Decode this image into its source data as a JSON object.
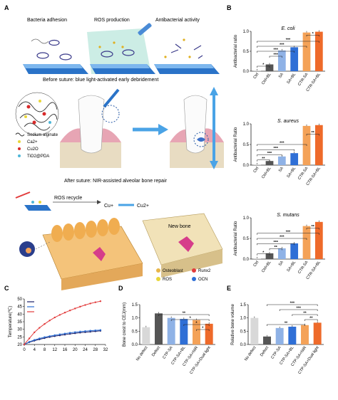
{
  "colors": {
    "ctrl": "#d8d8d8",
    "ctrl_bl": "#555555",
    "sa": "#8fb2e6",
    "sa_bl": "#2f6fd6",
    "ctr_sa": "#f4a258",
    "ctr_sa_bl": "#ee6a2a",
    "line_ctrl": "#1b1e66",
    "line_blue": "#2c6fd5",
    "line_red": "#e23b3b",
    "accent_blue": "#3e9be0",
    "glass_blue": "#2a73c8"
  },
  "panel_a": {
    "label": "A",
    "steps": [
      "Bacteria adhesion",
      "ROS production",
      "Antibacterial activity"
    ],
    "before_caption": "Before suture: blue light-activated early debridement",
    "legend": [
      "Sodium alginate",
      "Ca2+",
      "Cu2O",
      "TiO2@PDA"
    ],
    "after_caption": "After suture: NIR-assisted alveolar bone repair",
    "ros_recycle": "ROS recycle",
    "cu_plus": "Cu+",
    "cu_2plus": "Cu2+",
    "new_bone": "New bone",
    "legend2": [
      "Osteoblast",
      "Runx2",
      "ROS",
      "OCN"
    ]
  },
  "panel_b_label": "B",
  "panel_c_label": "C",
  "panel_d_label": "D",
  "panel_e_label": "E",
  "chart_data": [
    {
      "id": "b1",
      "type": "bar",
      "title": "E. coli",
      "ylabel": "Antibacterial ratio",
      "categories": [
        "Ctrl",
        "Ctrl+BL",
        "SA",
        "SA+BL",
        "CTR-SA",
        "CTR-SA+BL"
      ],
      "values": [
        0.02,
        0.17,
        0.52,
        0.6,
        0.97,
        0.99
      ],
      "ylim": [
        0,
        1.0
      ],
      "yticks": [
        "0.0",
        "0.5",
        "1.0"
      ],
      "sig": [
        "*",
        "***",
        "***",
        "***",
        "***",
        "*"
      ]
    },
    {
      "id": "b2",
      "type": "bar",
      "title": "S. aureus",
      "ylabel": "Antibacterial Ratio",
      "categories": [
        "Ctrl",
        "Ctrl+BL",
        "SA",
        "SA+BL",
        "CTR-SA",
        "CTR-SA+BL"
      ],
      "values": [
        0.02,
        0.1,
        0.21,
        0.29,
        0.95,
        0.97
      ],
      "ylim": [
        0,
        1.0
      ],
      "yticks": [
        "0.0",
        "0.5",
        "1.0"
      ],
      "sig": [
        "**",
        "***",
        "***",
        "***",
        "**"
      ]
    },
    {
      "id": "b3",
      "type": "bar",
      "title": "S. mutans",
      "ylabel": "Antibacterial Ratio",
      "categories": [
        "Ctrl",
        "Ctrl+BL",
        "SA",
        "SA+BL",
        "CTR-SA",
        "CTR-SA+BL"
      ],
      "values": [
        0.02,
        0.14,
        0.26,
        0.38,
        0.8,
        0.9
      ],
      "ylim": [
        0,
        1.0
      ],
      "yticks": [
        "0.0",
        "0.5",
        "1.0"
      ],
      "sig": [
        "*",
        "**",
        "***",
        "***",
        "***",
        "**"
      ]
    },
    {
      "id": "c",
      "type": "line",
      "ylabel": "Temperature(℃)",
      "xlim": [
        0,
        32
      ],
      "ylim": [
        20,
        50
      ],
      "xticks": [
        "0",
        "4",
        "8",
        "12",
        "16",
        "20",
        "24",
        "28",
        "32"
      ],
      "yticks": [
        "20",
        "25",
        "30",
        "35",
        "40",
        "45",
        "50"
      ],
      "x": [
        0,
        2,
        4,
        6,
        8,
        10,
        12,
        14,
        16,
        18,
        20,
        22,
        24,
        26,
        28,
        30
      ],
      "series": [
        {
          "values": [
            20,
            21.5,
            22.5,
            23.4,
            24.2,
            24.9,
            25.5,
            26,
            26.5,
            27,
            27.4,
            27.8,
            28.1,
            28.4,
            28.7,
            29
          ]
        },
        {
          "values": [
            20,
            21.8,
            23,
            24,
            24.8,
            25.5,
            26.1,
            26.7,
            27.2,
            27.7,
            28.1,
            28.5,
            28.8,
            29.1,
            29.3,
            29.5
          ]
        },
        {
          "values": [
            20,
            24,
            28,
            31,
            33.5,
            35.8,
            37.8,
            39.5,
            41,
            42.4,
            43.7,
            44.9,
            46,
            47,
            47.8,
            48.5
          ]
        }
      ]
    },
    {
      "id": "d",
      "type": "bar",
      "ylabel": "Bone crest to CEJ(mm)",
      "categories": [
        "No defect",
        "Defect",
        "CTP-SA",
        "CTP-SA+BL",
        "CTP-SA+NIR",
        "CTP-SA+Dual light"
      ],
      "values": [
        0.65,
        1.17,
        1.0,
        0.96,
        0.92,
        0.78
      ],
      "ylim": [
        0,
        1.5
      ],
      "yticks": [
        "0.0",
        "0.5",
        "1.0",
        "1.5"
      ],
      "sig": [
        "**",
        "*",
        "*",
        "*"
      ]
    },
    {
      "id": "e",
      "type": "bar",
      "ylabel": "Relative bone volume",
      "categories": [
        "No defect",
        "Defect",
        "CTP-SA",
        "CTP-SA+BL",
        "CTP-SA+NIR",
        "CTP-SA+Dual light"
      ],
      "values": [
        1.0,
        0.3,
        0.62,
        0.67,
        0.73,
        0.82
      ],
      "ylim": [
        0,
        1.5
      ],
      "yticks": [
        "0.0",
        "0.5",
        "1.0",
        "1.5"
      ],
      "sig": [
        "***",
        "***",
        "**",
        "**",
        "**"
      ]
    }
  ]
}
